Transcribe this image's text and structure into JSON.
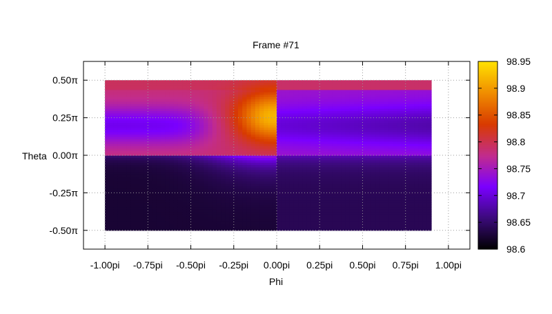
{
  "chart_data": {
    "type": "heatmap",
    "title": "Frame #71",
    "xlabel": "Phi",
    "ylabel": "Theta",
    "xlim": [
      -1.125,
      1.125
    ],
    "ylim": [
      -0.625,
      0.625
    ],
    "x_ticks": [
      {
        "value": -1.0,
        "label": "-1.00pi"
      },
      {
        "value": -0.75,
        "label": "-0.75pi"
      },
      {
        "value": -0.5,
        "label": "-0.50pi"
      },
      {
        "value": -0.25,
        "label": "-0.25pi"
      },
      {
        "value": 0.0,
        "label": "0.00pi"
      },
      {
        "value": 0.25,
        "label": "0.25pi"
      },
      {
        "value": 0.5,
        "label": "0.50pi"
      },
      {
        "value": 0.75,
        "label": "0.75pi"
      },
      {
        "value": 1.0,
        "label": "1.00pi"
      }
    ],
    "y_ticks": [
      {
        "value": 0.5,
        "label": "0.50π"
      },
      {
        "value": 0.25,
        "label": "0.25π"
      },
      {
        "value": 0.0,
        "label": "0.00π"
      },
      {
        "value": -0.25,
        "label": "-0.25π"
      },
      {
        "value": -0.5,
        "label": "-0.50π"
      }
    ],
    "data_extent": {
      "x": [
        -1.0,
        0.9
      ],
      "y": [
        -0.5,
        0.5
      ]
    },
    "colorbar": {
      "range": [
        98.6,
        98.95
      ],
      "ticks": [
        98.6,
        98.65,
        98.7,
        98.75,
        98.8,
        98.85,
        98.9,
        98.95
      ],
      "tick_labels": [
        "98.6",
        "98.65",
        "98.7",
        "98.75",
        "98.8",
        "98.85",
        "98.9",
        "98.95"
      ],
      "palette": [
        "#000000",
        "#3b0a7a",
        "#7a00ff",
        "#c22c8c",
        "#d83a00",
        "#f08d00",
        "#ffe100"
      ]
    },
    "grid": true,
    "grid_style": "dotted"
  }
}
